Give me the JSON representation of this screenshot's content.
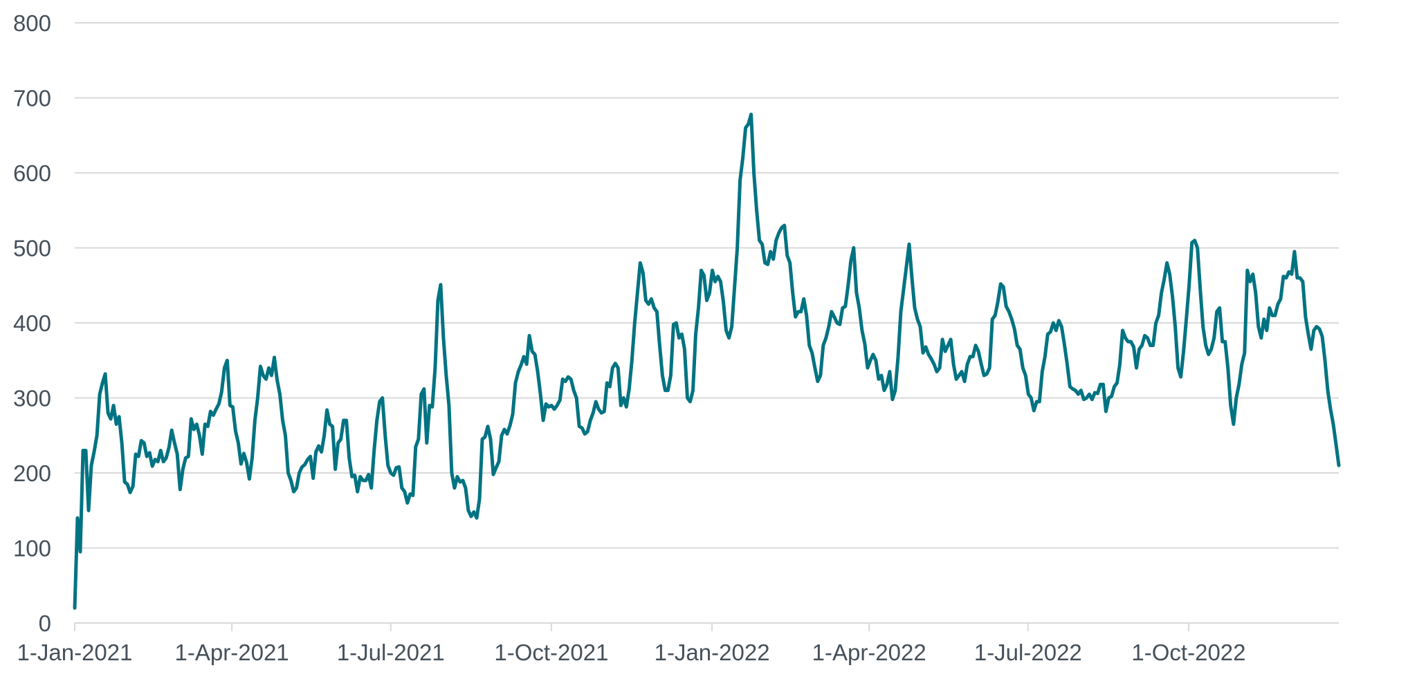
{
  "chart_data": {
    "type": "line",
    "title": "",
    "xlabel": "",
    "ylabel": "",
    "ylim": [
      0,
      800
    ],
    "yticks": [
      0,
      100,
      200,
      300,
      400,
      500,
      600,
      700,
      800
    ],
    "x_unit": "days since 1-Jan-2021",
    "xlim_days": [
      0,
      724
    ],
    "xticks": [
      {
        "day": 0,
        "label": "1-Jan-2021"
      },
      {
        "day": 90,
        "label": "1-Apr-2021"
      },
      {
        "day": 181,
        "label": "1-Jul-2021"
      },
      {
        "day": 273,
        "label": "1-Oct-2021"
      },
      {
        "day": 365,
        "label": "1-Jan-2022"
      },
      {
        "day": 455,
        "label": "1-Apr-2022"
      },
      {
        "day": 546,
        "label": "1-Jul-2022"
      },
      {
        "day": 638,
        "label": "1-Oct-2022"
      }
    ],
    "grid": true,
    "legend": "none",
    "series": [
      {
        "name": "series",
        "color": "#007382",
        "values": [
          20,
          140,
          95,
          230,
          230,
          150,
          210,
          228,
          250,
          305,
          320,
          332,
          280,
          272,
          290,
          265,
          275,
          240,
          188,
          185,
          174,
          182,
          225,
          222,
          243,
          240,
          222,
          227,
          209,
          218,
          215,
          230,
          215,
          220,
          234,
          257,
          240,
          225,
          178,
          205,
          220,
          222,
          272,
          258,
          265,
          250,
          225,
          265,
          262,
          282,
          277,
          285,
          292,
          308,
          340,
          350,
          290,
          288,
          256,
          240,
          212,
          226,
          214,
          192,
          220,
          270,
          300,
          342,
          330,
          325,
          340,
          330,
          354,
          324,
          305,
          270,
          250,
          200,
          190,
          175,
          180,
          200,
          208,
          211,
          218,
          222,
          193,
          228,
          236,
          228,
          250,
          284,
          265,
          262,
          205,
          240,
          245,
          270,
          270,
          220,
          195,
          197,
          175,
          195,
          190,
          190,
          198,
          180,
          230,
          270,
          295,
          300,
          250,
          210,
          200,
          197,
          207,
          208,
          180,
          175,
          160,
          172,
          170,
          235,
          245,
          305,
          312,
          240,
          290,
          288,
          340,
          430,
          451,
          380,
          330,
          290,
          200,
          180,
          195,
          188,
          190,
          180,
          150,
          142,
          148,
          140,
          165,
          245,
          248,
          262,
          245,
          198,
          207,
          215,
          250,
          258,
          252,
          263,
          278,
          320,
          335,
          344,
          355,
          345,
          383,
          362,
          358,
          335,
          305,
          270,
          292,
          288,
          290,
          285,
          290,
          297,
          325,
          322,
          328,
          325,
          310,
          300,
          262,
          260,
          252,
          255,
          270,
          280,
          295,
          285,
          280,
          282,
          320,
          315,
          340,
          346,
          340,
          290,
          300,
          288,
          312,
          350,
          400,
          440,
          480,
          467,
          430,
          425,
          432,
          420,
          415,
          370,
          330,
          310,
          310,
          330,
          398,
          400,
          380,
          385,
          365,
          300,
          295,
          310,
          385,
          420,
          470,
          463,
          430,
          440,
          470,
          455,
          462,
          455,
          428,
          390,
          380,
          395,
          447,
          500,
          590,
          620,
          660,
          665,
          678,
          600,
          550,
          510,
          505,
          480,
          478,
          495,
          485,
          510,
          520,
          527,
          530,
          490,
          480,
          440,
          408,
          415,
          415,
          432,
          410,
          370,
          360,
          340,
          322,
          330,
          370,
          380,
          395,
          415,
          408,
          400,
          398,
          420,
          422,
          450,
          483,
          500,
          440,
          420,
          390,
          372,
          340,
          350,
          358,
          350,
          325,
          330,
          310,
          318,
          335,
          298,
          310,
          355,
          415,
          445,
          475,
          505,
          460,
          420,
          405,
          395,
          360,
          368,
          358,
          352,
          345,
          335,
          340,
          378,
          362,
          370,
          378,
          345,
          325,
          330,
          335,
          322,
          345,
          355,
          355,
          370,
          362,
          345,
          330,
          332,
          340,
          405,
          410,
          428,
          452,
          448,
          422,
          415,
          405,
          392,
          370,
          365,
          340,
          330,
          305,
          300,
          283,
          295,
          295,
          335,
          355,
          385,
          388,
          400,
          390,
          403,
          395,
          372,
          345,
          315,
          312,
          310,
          305,
          310,
          298,
          300,
          305,
          298,
          307,
          306,
          318,
          318,
          282,
          300,
          302,
          315,
          320,
          345,
          390,
          380,
          375,
          375,
          368,
          340,
          365,
          370,
          383,
          380,
          370,
          370,
          400,
          410,
          440,
          458,
          480,
          465,
          435,
          395,
          340,
          328,
          362,
          405,
          450,
          507,
          510,
          500,
          445,
          395,
          370,
          358,
          365,
          380,
          415,
          420,
          375,
          375,
          340,
          290,
          265,
          300,
          318,
          345,
          360,
          470,
          455,
          465,
          440,
          395,
          380,
          405,
          390,
          420,
          410,
          410,
          425,
          432,
          462,
          460,
          468,
          465,
          495,
          460,
          460,
          455,
          408,
          385,
          365,
          390,
          395,
          392,
          382,
          350,
          310,
          285,
          265,
          238,
          210
        ]
      }
    ]
  }
}
